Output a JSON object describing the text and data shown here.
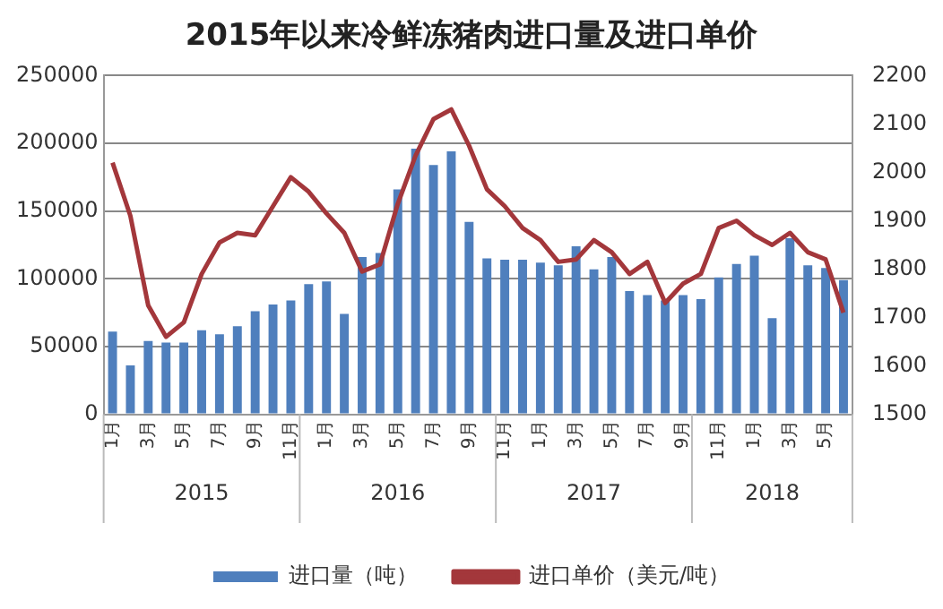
{
  "chart_data": {
    "type": "bar",
    "title": "2015年以来冷鲜冻猪肉进口量及进口单价",
    "categories": [
      "1月",
      null,
      "3月",
      null,
      "5月",
      null,
      "7月",
      null,
      "9月",
      null,
      "11月",
      null,
      "1月",
      null,
      "3月",
      null,
      "5月",
      null,
      "7月",
      null,
      "9月",
      null,
      "11月",
      null,
      "1月",
      null,
      "3月",
      null,
      "5月",
      null,
      "7月",
      null,
      "9月",
      null,
      "11月",
      null,
      "1月",
      null,
      "3月",
      null,
      "5月",
      null
    ],
    "annotations": [
      "2015",
      "2016",
      "2017",
      "2018"
    ],
    "series": [
      {
        "name": "进口量（吨）",
        "color": "#4f7fbd",
        "values": [
          61000,
          36000,
          54000,
          53000,
          53000,
          62000,
          59000,
          65000,
          76000,
          81000,
          84000,
          96000,
          98000,
          74000,
          116000,
          119000,
          166000,
          196000,
          184000,
          194000,
          142000,
          115000,
          114000,
          114000,
          112000,
          110000,
          124000,
          107000,
          116000,
          91000,
          88000,
          84000,
          88000,
          85000,
          101000,
          111000,
          117000,
          71000,
          130000,
          110000,
          108000,
          99000
        ]
      },
      {
        "name": "进口单价（美元/吨）",
        "type": "line",
        "axis": "y2",
        "color": "#a3373b",
        "values": [
          2020,
          1910,
          1725,
          1660,
          1690,
          1790,
          1855,
          1875,
          1870,
          1930,
          1990,
          1960,
          1915,
          1875,
          1795,
          1810,
          1935,
          2035,
          2110,
          2130,
          2055,
          1965,
          1930,
          1885,
          1860,
          1815,
          1820,
          1860,
          1835,
          1790,
          1815,
          1730,
          1770,
          1790,
          1885,
          1900,
          1870,
          1850,
          1875,
          1835,
          1820,
          1710
        ]
      }
    ],
    "ylim": [
      0,
      250000
    ],
    "yticks": [
      0,
      50000,
      100000,
      150000,
      200000,
      250000
    ],
    "y2lim": [
      1500,
      2200
    ],
    "y2ticks": [
      1500,
      1600,
      1700,
      1800,
      1900,
      2000,
      2100,
      2200
    ],
    "grid": "y",
    "legend": "bottom",
    "marker": "none",
    "line_style": "solid"
  }
}
